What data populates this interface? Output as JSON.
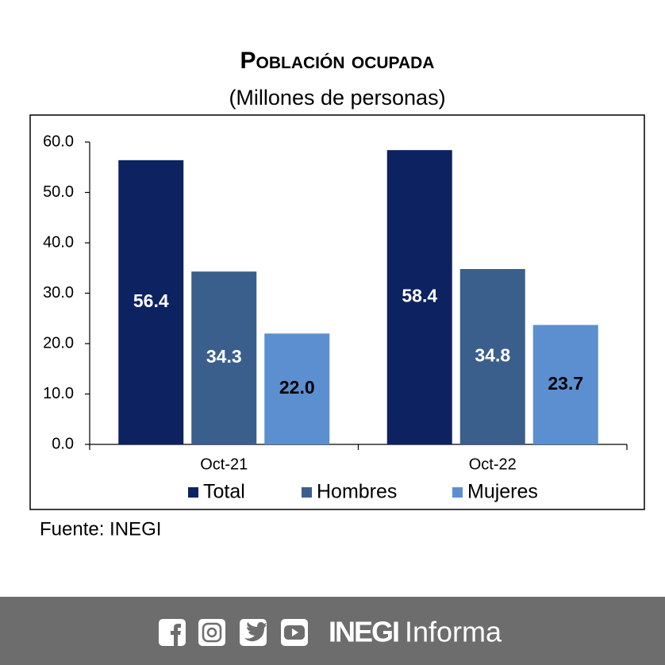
{
  "chart_data": {
    "type": "bar",
    "title": "Población ocupada",
    "subtitle": "(Millones de personas)",
    "categories": [
      "Oct-21",
      "Oct-22"
    ],
    "series": [
      {
        "name": "Total",
        "color": "#0d2260",
        "label_color": "#ffffff",
        "values": [
          56.4,
          58.4
        ],
        "value_labels": [
          "56.4",
          "58.4"
        ]
      },
      {
        "name": "Hombres",
        "color": "#3a5f8c",
        "label_color": "#ffffff",
        "values": [
          34.3,
          34.8
        ],
        "value_labels": [
          "34.3",
          "34.8"
        ]
      },
      {
        "name": "Mujeres",
        "color": "#5b8fd0",
        "label_color": "#000000",
        "values": [
          22.0,
          23.7
        ],
        "value_labels": [
          "22.0",
          "23.7"
        ]
      }
    ],
    "ylim": [
      0,
      60
    ],
    "yticks": [
      {
        "value": 0,
        "label": "0.0"
      },
      {
        "value": 10,
        "label": "10.0"
      },
      {
        "value": 20,
        "label": "20.0"
      },
      {
        "value": 30,
        "label": "30.0"
      },
      {
        "value": 40,
        "label": "40.0"
      },
      {
        "value": 50,
        "label": "50.0"
      },
      {
        "value": 60,
        "label": "60.0"
      }
    ],
    "grid": false,
    "legend": "bottom"
  },
  "source": "Fuente: INEGI",
  "footer": {
    "brand": "INEGI",
    "tagline": "Informa"
  }
}
